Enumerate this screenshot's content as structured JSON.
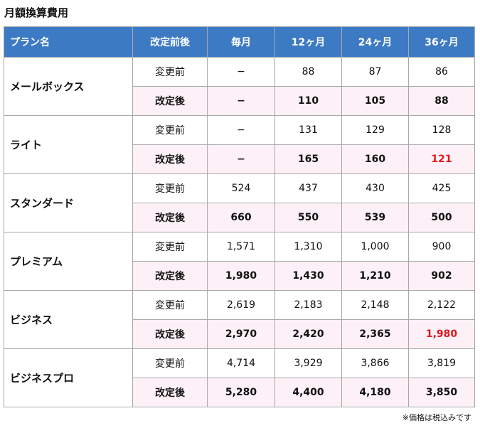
{
  "title": "月額換算費用",
  "columns": [
    "プラン名",
    "改定前後",
    "毎月",
    "12ヶ月",
    "24ヶ月",
    "36ヶ月"
  ],
  "plans": [
    {
      "name": "メールボックス",
      "before": {
        "label": "変更前",
        "values": [
          "−",
          "88",
          "87",
          "86"
        ]
      },
      "after": {
        "label": "改定後",
        "values": [
          "−",
          "110",
          "105",
          "88"
        ],
        "highlight": [
          false,
          false,
          false,
          false
        ]
      }
    },
    {
      "name": "ライト",
      "before": {
        "label": "変更前",
        "values": [
          "−",
          "131",
          "129",
          "128"
        ]
      },
      "after": {
        "label": "改定後",
        "values": [
          "−",
          "165",
          "160",
          "121"
        ],
        "highlight": [
          false,
          false,
          false,
          true
        ]
      }
    },
    {
      "name": "スタンダード",
      "before": {
        "label": "変更前",
        "values": [
          "524",
          "437",
          "430",
          "425"
        ]
      },
      "after": {
        "label": "改定後",
        "values": [
          "660",
          "550",
          "539",
          "500"
        ],
        "highlight": [
          false,
          false,
          false,
          false
        ]
      }
    },
    {
      "name": "プレミアム",
      "before": {
        "label": "変更前",
        "values": [
          "1,571",
          "1,310",
          "1,000",
          "900"
        ]
      },
      "after": {
        "label": "改定後",
        "values": [
          "1,980",
          "1,430",
          "1,210",
          "902"
        ],
        "highlight": [
          false,
          false,
          false,
          false
        ]
      }
    },
    {
      "name": "ビジネス",
      "before": {
        "label": "変更前",
        "values": [
          "2,619",
          "2,183",
          "2,148",
          "2,122"
        ]
      },
      "after": {
        "label": "改定後",
        "values": [
          "2,970",
          "2,420",
          "2,365",
          "1,980"
        ],
        "highlight": [
          false,
          false,
          false,
          true
        ]
      }
    },
    {
      "name": "ビジネスプロ",
      "before": {
        "label": "変更前",
        "values": [
          "4,714",
          "3,929",
          "3,866",
          "3,819"
        ]
      },
      "after": {
        "label": "改定後",
        "values": [
          "5,280",
          "4,400",
          "4,180",
          "3,850"
        ],
        "highlight": [
          false,
          false,
          false,
          false
        ]
      }
    }
  ],
  "note": "※価格は税込みです",
  "colors": {
    "header_bg": "#3d7ac4",
    "after_row_bg": "#fdf0f6",
    "highlight": "#e0191c"
  }
}
